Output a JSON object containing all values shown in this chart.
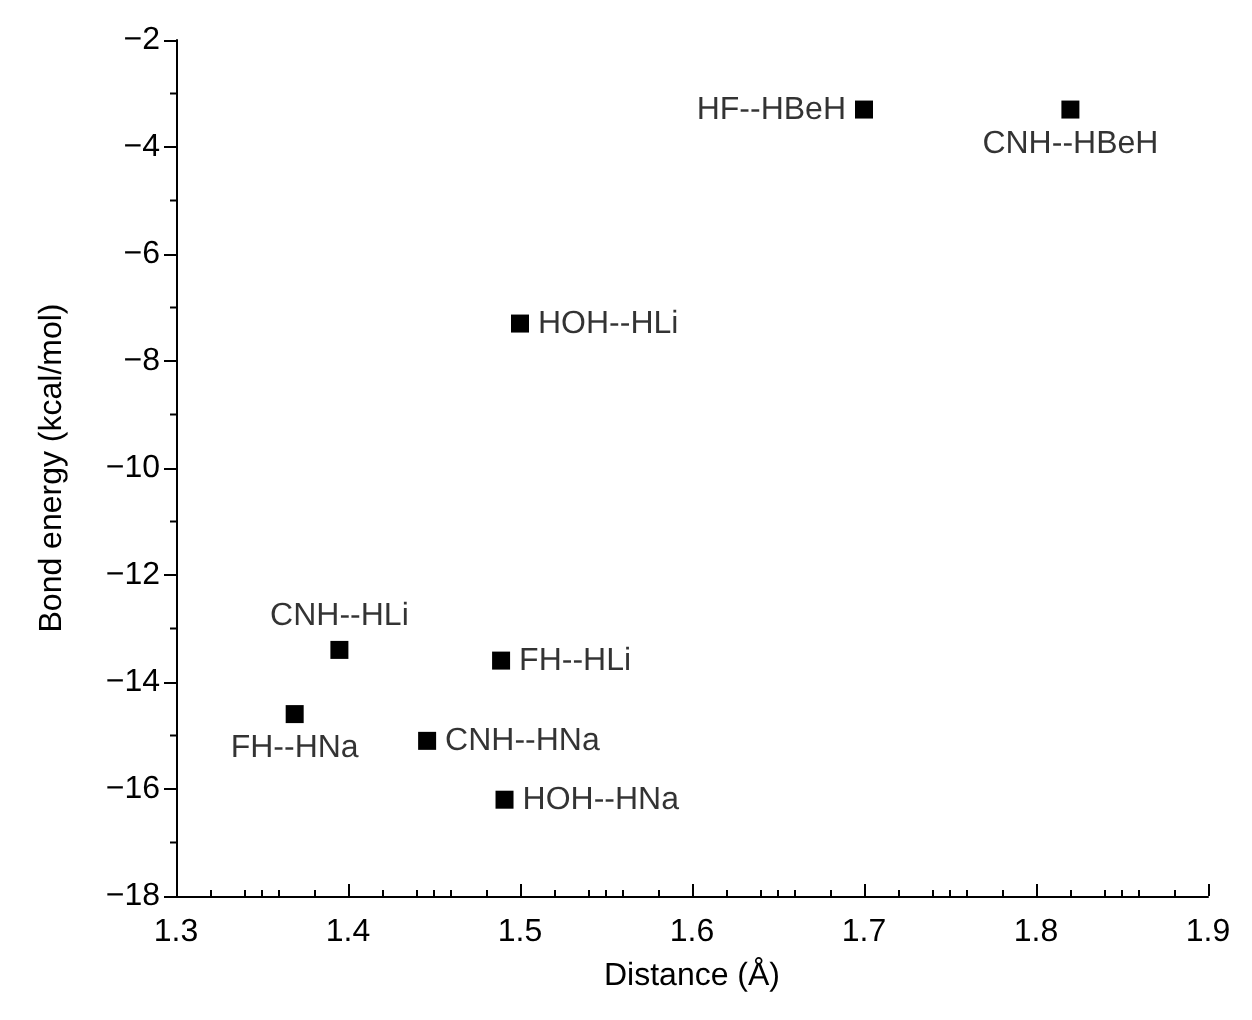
{
  "chart_data": {
    "type": "scatter",
    "xlabel": "Distance (Å)",
    "ylabel": "Bond energy (kcal/mol)",
    "x": [
      1.7,
      1.82,
      1.5,
      1.395,
      1.489,
      1.369,
      1.446,
      1.491
    ],
    "values": [
      -3.3,
      -3.3,
      -7.3,
      -13.4,
      -13.6,
      -14.6,
      -15.1,
      -16.2
    ],
    "color": "#000000",
    "marker": "square",
    "grid": false,
    "xlim": [
      1.3,
      1.9
    ],
    "xticks": [
      1.3,
      1.4,
      1.5,
      1.6,
      1.7,
      1.8,
      1.9
    ],
    "ylim": [
      -18,
      -2
    ],
    "yticks": [
      -18,
      -16,
      -14,
      -12,
      -10,
      -8,
      -6,
      -4,
      -2
    ],
    "annotations": [
      {
        "text": "HF--HBeH",
        "x": 1.7,
        "y": -3.3
      },
      {
        "text": "CNH--HBeH",
        "x": 1.82,
        "y": -3.3
      },
      {
        "text": "HOH--HLi",
        "x": 1.5,
        "y": -7.3
      },
      {
        "text": "CNH--HLi",
        "x": 1.395,
        "y": -13.4
      },
      {
        "text": "FH--HLi",
        "x": 1.489,
        "y": -13.6
      },
      {
        "text": "FH--HNa",
        "x": 1.369,
        "y": -14.6
      },
      {
        "text": "CNH--HNa",
        "x": 1.446,
        "y": -15.1
      },
      {
        "text": "HOH--HNa",
        "x": 1.491,
        "y": -16.2
      }
    ]
  }
}
